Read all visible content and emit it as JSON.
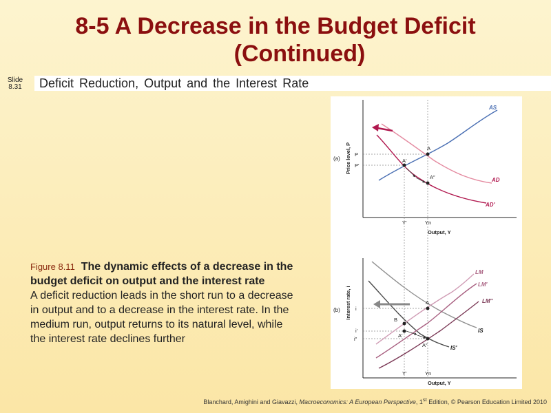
{
  "title": {
    "line1": "8-5  A Decrease in the Budget Deficit",
    "line2": "(Continued)"
  },
  "slide": {
    "word": "Slide",
    "number": "8.31"
  },
  "subtitle": "Deficit Reduction, Output and the Interest Rate",
  "caption": {
    "figure_number": "Figure 8.11",
    "heading": "The dynamic effects of a decrease in the budget deficit on output and the interest rate",
    "body": "A deficit reduction leads in the short run to a decrease in output and to a decrease in the interest rate. In the medium run, output returns to its natural level, while the interest rate declines further"
  },
  "credits": {
    "authors": "Blanchard, Amighini and Giavazzi,",
    "book": "Macroeconomics: A European Perspective",
    "edition_num": ", 1",
    "edition_sup": "st",
    "rest": " Edition, © Pearson Education Limited 2010"
  },
  "chart_data": [
    {
      "type": "line",
      "panel": "(a)",
      "xlabel": "Output, Y",
      "ylabel": "Price level, P",
      "series": [
        {
          "name": "AS"
        },
        {
          "name": "AD"
        },
        {
          "name": "AD′"
        }
      ],
      "points": [
        "A",
        "A′",
        "A″"
      ],
      "x_ticks": [
        "Y′",
        "Yn"
      ],
      "y_ticks": [
        "P",
        "P′"
      ]
    },
    {
      "type": "line",
      "panel": "(b)",
      "xlabel": "Output, Y",
      "ylabel": "Interest rate, i",
      "series": [
        {
          "name": "LM"
        },
        {
          "name": "LM′"
        },
        {
          "name": "LM″"
        },
        {
          "name": "IS"
        },
        {
          "name": "IS′"
        }
      ],
      "points": [
        "A",
        "B",
        "A′",
        "A″"
      ],
      "x_ticks": [
        "Y′",
        "Yn"
      ],
      "y_ticks": [
        "i",
        "i′",
        "i″"
      ]
    }
  ],
  "colors": {
    "title": "#8b0f0f",
    "as_curve": "#4a6fb3",
    "ad_curve": "#e48aa0",
    "ad_prime_curve": "#b0174e",
    "lm_curve": "#cf9bb4",
    "lm_prime_curve": "#a85f80",
    "lm_dprime_curve": "#7c3a57",
    "is_curve": "#8f8f8f",
    "is_prime_curve": "#4a4a4a"
  }
}
